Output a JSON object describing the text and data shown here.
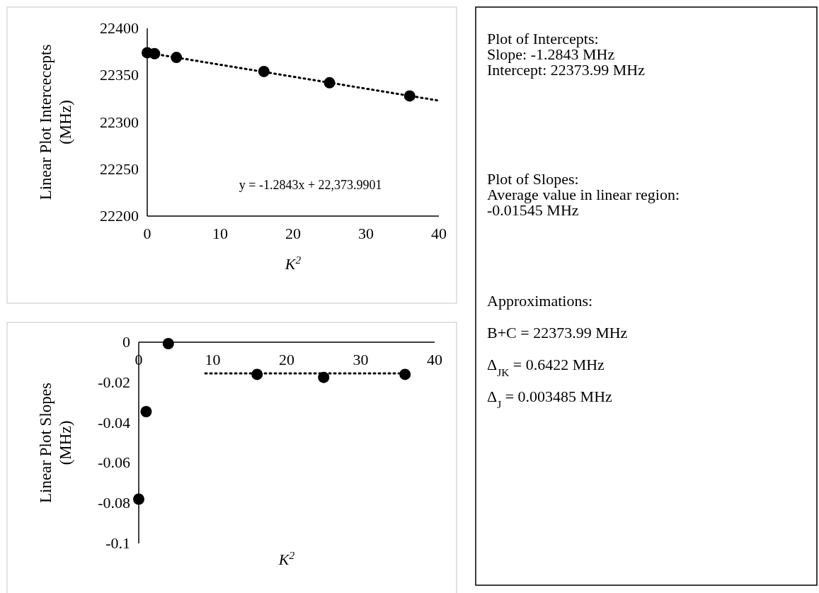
{
  "chart_data": [
    {
      "type": "scatter",
      "xlabel": "K$^{2}$",
      "ylabel": "Linear Plot Intercecepts\n(MHz)",
      "xlim": [
        0,
        40
      ],
      "xticks": [
        0,
        10,
        20,
        30,
        40
      ],
      "ylim": [
        22200,
        22400
      ],
      "yticks": [
        22200,
        22250,
        22300,
        22350,
        22400
      ],
      "grid": false,
      "series": [
        {
          "type": "scatter",
          "marker": "circle",
          "color": "#000000",
          "x": [
            0,
            1,
            4,
            16,
            25,
            36
          ],
          "values": [
            22374,
            22373,
            22369,
            22354,
            22342,
            22328
          ]
        },
        {
          "type": "line",
          "color": "#000000",
          "line_style": "dotted",
          "x": [
            0,
            40
          ],
          "values": [
            22374,
            22323
          ]
        }
      ],
      "annotations": [
        "y = -1.2843x + 22,373.9901"
      ]
    },
    {
      "type": "scatter",
      "xlabel": "K$^{2}$",
      "ylabel": "Linear Plot Slopes\n(MHz)",
      "xlim": [
        0,
        40
      ],
      "xticks": [
        0,
        10,
        20,
        30,
        40
      ],
      "ylim": [
        -0.1,
        0
      ],
      "yticks": [
        -0.1,
        -0.08,
        -0.06,
        -0.04,
        -0.02,
        0
      ],
      "grid": false,
      "series": [
        {
          "type": "scatter",
          "marker": "circle",
          "color": "#000000",
          "x": [
            0,
            1,
            4,
            16,
            25,
            36
          ],
          "values": [
            -0.078,
            -0.0345,
            -0.0007,
            -0.016,
            -0.0175,
            -0.016
          ]
        },
        {
          "type": "line",
          "color": "#000000",
          "line_style": "dotted",
          "x": [
            9,
            36
          ],
          "values": [
            -0.0155,
            -0.0155
          ]
        }
      ]
    },
    {
      "type": "other",
      "annotations": [
        "Plot of Intercepts:",
        "Slope: -1.2843 MHz",
        "Intercept: 22373.99 MHz",
        "Plot of Slopes:",
        "Average value in linear region:",
        "-0.01545 MHz",
        "Approximations:",
        "B+C = 22373.99 MHz",
        "Δ$_{JK}$ = 0.6422 MHz",
        "Δ$_{J}$ = 0.003485 MHz"
      ]
    }
  ]
}
